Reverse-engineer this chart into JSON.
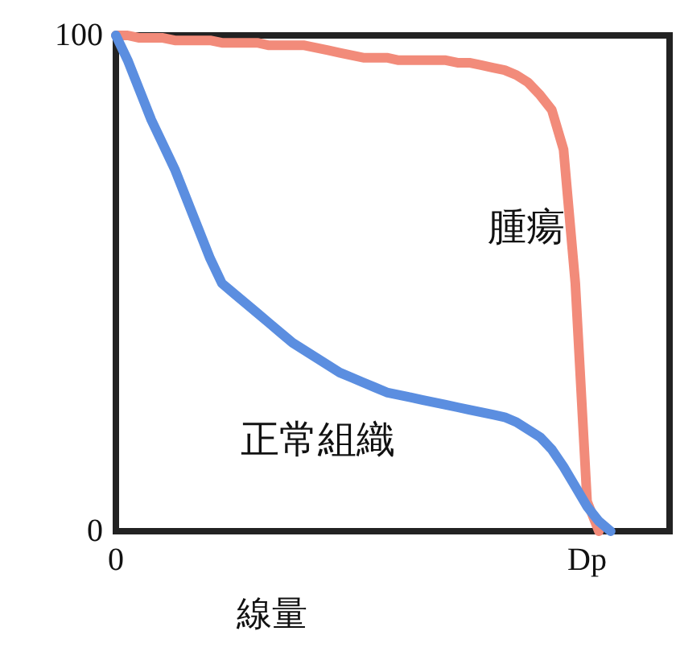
{
  "chart_data": {
    "type": "line",
    "xlabel": "線量",
    "categories": [
      "0",
      null,
      null,
      null,
      null,
      null,
      null,
      null,
      null,
      null,
      null,
      null,
      null,
      null,
      null,
      null,
      null,
      null,
      null,
      null,
      null,
      null,
      null,
      null,
      null,
      null,
      null,
      null,
      null,
      null,
      null,
      null,
      null,
      null,
      null,
      null,
      null,
      null,
      null,
      null,
      "Dp",
      null,
      null,
      null,
      null,
      null,
      null,
      null
    ],
    "ylim": [
      0,
      100
    ],
    "yticks": [
      0,
      100
    ],
    "grid": false,
    "legend": false,
    "marker": "none",
    "line_style": "solid",
    "series": [
      {
        "name": "腫瘍",
        "color": "#f28b7a",
        "values": [
          100,
          100,
          99.5,
          99.5,
          99.5,
          99,
          99,
          99,
          99,
          98.5,
          98.5,
          98.5,
          98.5,
          98,
          98,
          98,
          98,
          97.5,
          97,
          96.5,
          96,
          95.5,
          95.5,
          95.5,
          95,
          95,
          95,
          95,
          95,
          94.5,
          94.5,
          94,
          93.5,
          93,
          92,
          90.5,
          88,
          85,
          77,
          50,
          6,
          0,
          null,
          null,
          null,
          null,
          null,
          null
        ]
      },
      {
        "name": "正常組織",
        "color": "#5b8ee0",
        "values": [
          100,
          95,
          89,
          83,
          78,
          73,
          67,
          61,
          55,
          50,
          48,
          46,
          44,
          42,
          40,
          38,
          36.5,
          35,
          33.5,
          32,
          31,
          30,
          29,
          28,
          27.5,
          27,
          26.5,
          26,
          25.5,
          25,
          24.5,
          24,
          23.5,
          23,
          22,
          20.5,
          19,
          16.5,
          13,
          9,
          5,
          2,
          0,
          null,
          null,
          null,
          null,
          null
        ]
      }
    ]
  }
}
